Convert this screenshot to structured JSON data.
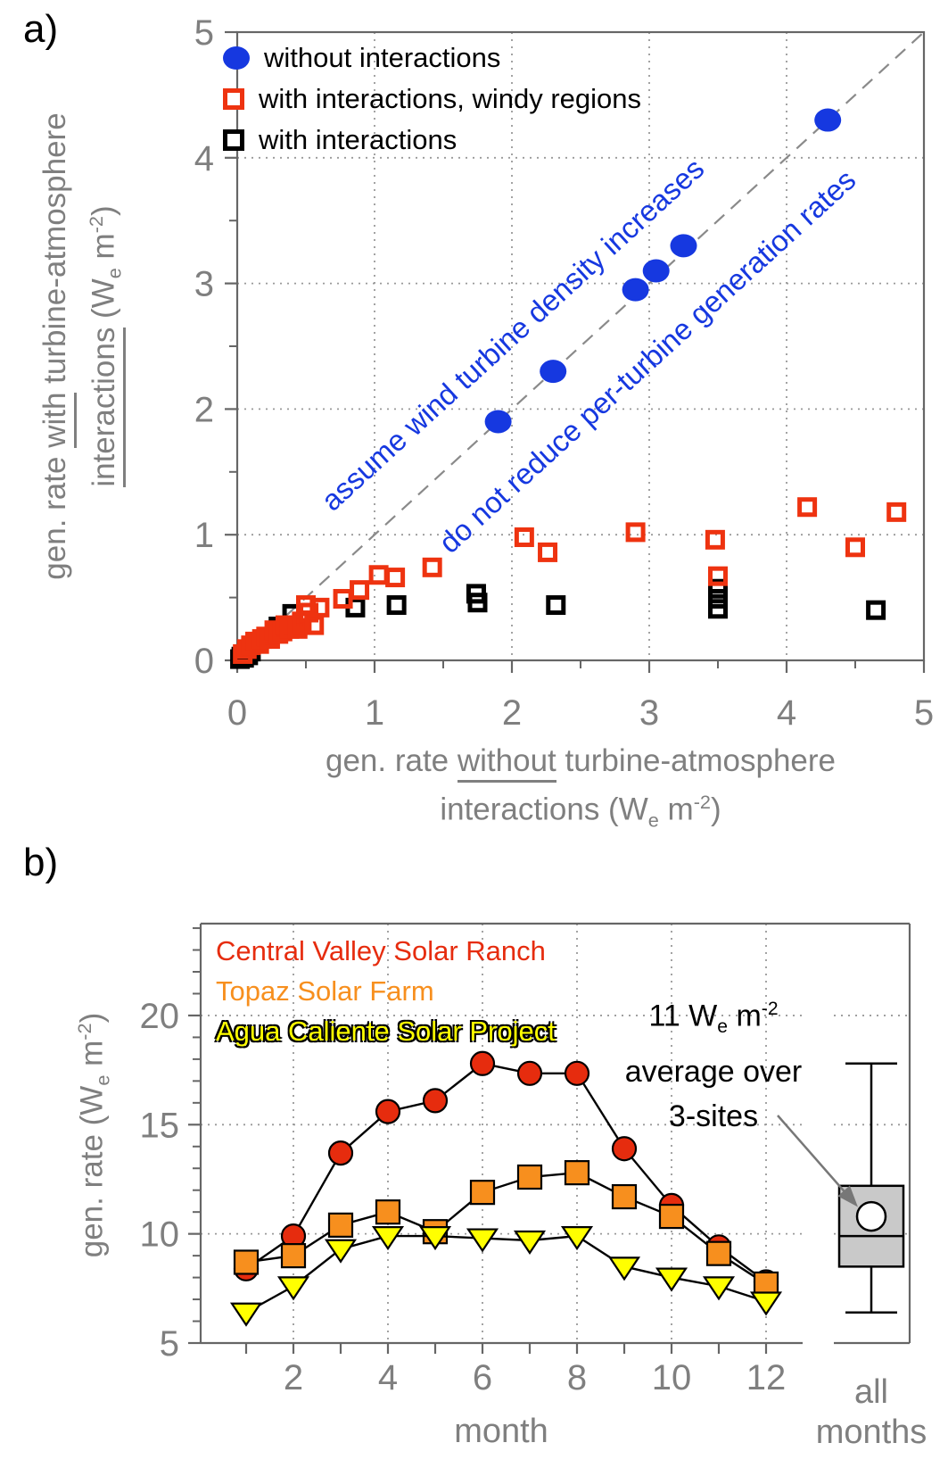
{
  "colors": {
    "blue": "#1638e0",
    "red_a": "#ee3310",
    "black": "#000000",
    "red_b": "#e62c0e",
    "orange": "#f78f1e",
    "yellow": "#ffff00",
    "axis_gray": "#7f7f7f",
    "line_gray": "#666666",
    "grid_gray": "#999999",
    "dash_gray": "#8a8a8a",
    "box_fill": "#c9c9c9",
    "arrow_gray": "#777777"
  },
  "panel_a": {
    "label": "a)",
    "legend": [
      {
        "label": "without interactions"
      },
      {
        "label": "with interactions, windy regions"
      },
      {
        "label": "with interactions"
      }
    ],
    "diag_text_upper": "assume wind turbine density increases",
    "diag_text_lower": "do not reduce per-turbine generation rates",
    "xlabel_line1": {
      "pre": "gen. rate ",
      "u": "without",
      "post": " turbine-atmosphere"
    },
    "xlabel_line2": {
      "p1": "interactions (W",
      "sub": "e",
      "p2": " m",
      "sup": "-2",
      "p3": ")"
    },
    "ylabel_line1": {
      "pre": "gen. rate ",
      "u": "with",
      "post": " turbine-atmosphere"
    },
    "ylabel_line2": {
      "u": "interactions",
      "p1": " (W",
      "sub": "e",
      "p2": " m",
      "sup": "-2",
      "p3": ")"
    }
  },
  "panel_b": {
    "label": "b)",
    "legend": [
      {
        "label": "Central Valley Solar Ranch"
      },
      {
        "label": "Topaz Solar Farm"
      },
      {
        "label": "Agua Caliente Solar Project"
      }
    ],
    "annotation": {
      "line1": {
        "p1": "11 W",
        "sub": "e",
        "p2": " m",
        "sup": "-2"
      },
      "line2": "average over",
      "line3": "3-sites"
    },
    "ylabel": {
      "p1": "gen. rate (W",
      "sub": "e",
      "p2": " m",
      "sup": "-2",
      "p3": ")"
    },
    "xlabel": "month",
    "all_months_label": {
      "line1": "all",
      "line2": "months"
    }
  },
  "chart_data": [
    {
      "type": "scatter",
      "panel": "a",
      "xlim": [
        0,
        5
      ],
      "ylim": [
        0,
        5
      ],
      "x_major_ticks": [
        0,
        1,
        2,
        3,
        4,
        5
      ],
      "y_major_ticks": [
        0,
        1,
        2,
        3,
        4,
        5
      ],
      "x_tick_labels": [
        "0",
        "1",
        "2",
        "3",
        "4",
        "5"
      ],
      "y_tick_labels": [
        "0",
        "1",
        "2",
        "3",
        "4",
        "5"
      ],
      "grid_lines": [
        1,
        2,
        3,
        4
      ],
      "identity_line": true,
      "xlabel": "gen. rate without turbine-atmosphere interactions (We m-2)",
      "ylabel": "gen. rate with turbine-atmosphere interactions (We m-2)",
      "series": [
        {
          "name": "with interactions",
          "marker": "open-square",
          "color_key": "black",
          "points": [
            [
              0.02,
              0.01
            ],
            [
              0.03,
              0.03
            ],
            [
              0.05,
              0.02
            ],
            [
              0.06,
              0.05
            ],
            [
              0.08,
              0.04
            ],
            [
              0.1,
              0.07
            ],
            [
              0.3,
              0.27
            ],
            [
              0.4,
              0.37
            ],
            [
              0.86,
              0.42
            ],
            [
              1.16,
              0.44
            ],
            [
              1.74,
              0.53
            ],
            [
              1.75,
              0.46
            ],
            [
              2.32,
              0.44
            ],
            [
              3.5,
              0.57
            ],
            [
              3.5,
              0.49
            ],
            [
              3.5,
              0.41
            ],
            [
              4.65,
              0.4
            ]
          ]
        },
        {
          "name": "with interactions, windy regions",
          "marker": "open-square",
          "color_key": "red_a",
          "points": [
            [
              0.04,
              0.05
            ],
            [
              0.07,
              0.09
            ],
            [
              0.1,
              0.12
            ],
            [
              0.13,
              0.15
            ],
            [
              0.16,
              0.13
            ],
            [
              0.18,
              0.17
            ],
            [
              0.21,
              0.19
            ],
            [
              0.24,
              0.17
            ],
            [
              0.27,
              0.24
            ],
            [
              0.3,
              0.21
            ],
            [
              0.33,
              0.23
            ],
            [
              0.35,
              0.28
            ],
            [
              0.38,
              0.25
            ],
            [
              0.41,
              0.28
            ],
            [
              0.44,
              0.25
            ],
            [
              0.47,
              0.31
            ],
            [
              0.5,
              0.44
            ],
            [
              0.52,
              0.38
            ],
            [
              0.56,
              0.28
            ],
            [
              0.6,
              0.42
            ],
            [
              0.77,
              0.49
            ],
            [
              0.89,
              0.56
            ],
            [
              1.03,
              0.68
            ],
            [
              1.15,
              0.66
            ],
            [
              1.42,
              0.74
            ],
            [
              2.09,
              0.98
            ],
            [
              2.26,
              0.86
            ],
            [
              2.9,
              1.02
            ],
            [
              3.48,
              0.96
            ],
            [
              3.5,
              0.67
            ],
            [
              4.15,
              1.22
            ],
            [
              4.5,
              0.9
            ],
            [
              4.8,
              1.18
            ]
          ]
        },
        {
          "name": "without interactions",
          "marker": "filled-circle",
          "color_key": "blue",
          "points": [
            [
              1.9,
              1.9
            ],
            [
              2.3,
              2.3
            ],
            [
              2.9,
              2.95
            ],
            [
              3.05,
              3.1
            ],
            [
              3.25,
              3.3
            ],
            [
              4.3,
              4.3
            ]
          ]
        }
      ]
    },
    {
      "type": "line",
      "panel": "b",
      "xlabel": "month",
      "ylabel": "gen. rate (We m-2)",
      "months": [
        1,
        2,
        3,
        4,
        5,
        6,
        7,
        8,
        9,
        10,
        11,
        12
      ],
      "x_labeled_months": [
        2,
        4,
        6,
        8,
        10,
        12
      ],
      "x_tick_labels": [
        "2",
        "4",
        "6",
        "8",
        "10",
        "12"
      ],
      "y_major_ticks": [
        5,
        10,
        15,
        20
      ],
      "y_tick_labels": [
        "5",
        "10",
        "15",
        "20"
      ],
      "y_grid": [
        10,
        15,
        20
      ],
      "ylim_drawn": [
        5,
        24.2
      ],
      "series": [
        {
          "name": "Central Valley Solar Ranch",
          "marker": "circle",
          "color_key": "red_b",
          "values": [
            8.4,
            9.9,
            13.7,
            15.6,
            16.1,
            17.8,
            17.35,
            17.35,
            13.9,
            11.3,
            9.4,
            7.8
          ]
        },
        {
          "name": "Topaz Solar Farm",
          "marker": "square",
          "color_key": "orange",
          "values": [
            8.7,
            9.0,
            10.4,
            11.0,
            10.1,
            11.9,
            12.6,
            12.8,
            11.7,
            10.8,
            9.1,
            7.7
          ]
        },
        {
          "name": "Agua Caliente Solar Project",
          "marker": "triangle-down",
          "color_key": "yellow",
          "values": [
            6.4,
            7.6,
            9.3,
            9.9,
            9.9,
            9.8,
            9.7,
            9.9,
            8.5,
            8.0,
            7.6,
            6.9
          ]
        }
      ],
      "boxplot": {
        "label": "all months",
        "min": 6.4,
        "q1": 8.5,
        "median": 9.9,
        "q3": 12.2,
        "max": 17.8,
        "mean": 10.8,
        "mean_label": "11 We m-2 average over 3-sites"
      }
    }
  ]
}
